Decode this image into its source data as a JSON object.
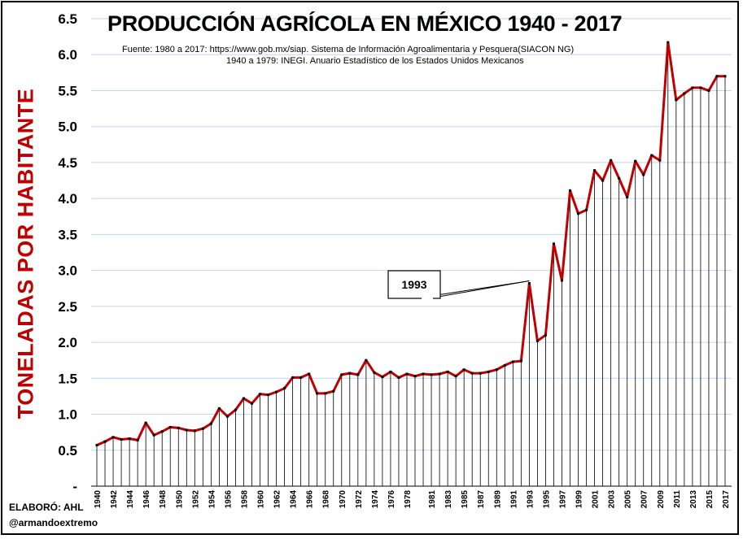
{
  "chart_data": {
    "type": "line",
    "title": "PRODUCCIÓN AGRÍCOLA EN MÉXICO 1940 - 2017",
    "source_line1": "Fuente:  1980 a 2017: https://www.gob.mx/siap.  Sistema de  Información Agroalimentaria y Pesquera(SIACON NG)",
    "source_line2": "1940 a 1979: INEGI. Anuario Estadístico de los Estados Unidos Mexicanos",
    "ylabel": "TONELADAS POR HABITANTE",
    "xlabel": "",
    "ylim": [
      0,
      6.5
    ],
    "ytick_values": [
      0,
      0.5,
      1.0,
      1.5,
      2.0,
      2.5,
      3.0,
      3.5,
      4.0,
      4.5,
      5.0,
      5.5,
      6.0,
      6.5
    ],
    "ytick_labels": [
      "-",
      "0.5",
      "1.0",
      "1.5",
      "2.0",
      "2.5",
      "3.0",
      "3.5",
      "4.0",
      "4.5",
      "5.0",
      "5.5",
      "6.0",
      "6.5"
    ],
    "grid": true,
    "line_color": "#c00000",
    "drop_line_color": "#000000",
    "grid_color": "#bdd7ee",
    "x": [
      1940,
      1941,
      1942,
      1943,
      1944,
      1945,
      1946,
      1947,
      1948,
      1949,
      1950,
      1951,
      1952,
      1953,
      1954,
      1955,
      1956,
      1957,
      1958,
      1959,
      1960,
      1961,
      1962,
      1963,
      1964,
      1965,
      1966,
      1967,
      1968,
      1969,
      1970,
      1971,
      1972,
      1973,
      1974,
      1975,
      1976,
      1977,
      1978,
      1979,
      1980,
      1981,
      1982,
      1983,
      1984,
      1985,
      1986,
      1987,
      1988,
      1989,
      1990,
      1991,
      1992,
      1993,
      1994,
      1995,
      1996,
      1997,
      1998,
      1999,
      2000,
      2001,
      2002,
      2003,
      2004,
      2005,
      2006,
      2007,
      2008,
      2009,
      2010,
      2011,
      2012,
      2013,
      2014,
      2015,
      2016,
      2017
    ],
    "x_tick_labels": [
      "1940",
      "1942",
      "1944",
      "1946",
      "1948",
      "1950",
      "1952",
      "1954",
      "1956",
      "1958",
      "1960",
      "1962",
      "1964",
      "1966",
      "1968",
      "1970",
      "1972",
      "1974",
      "1976",
      "1978",
      "1981",
      "1983",
      "1985",
      "1987",
      "1989",
      "1991",
      "1993",
      "1995",
      "1997",
      "1999",
      "2001",
      "2003",
      "2005",
      "2007",
      "2009",
      "2011",
      "2013",
      "2015",
      "2017"
    ],
    "series": [
      {
        "values": [
          0.57,
          0.62,
          0.68,
          0.65,
          0.66,
          0.64,
          0.88,
          0.71,
          0.76,
          0.82,
          0.81,
          0.78,
          0.77,
          0.8,
          0.87,
          1.08,
          0.97,
          1.06,
          1.22,
          1.15,
          1.28,
          1.27,
          1.31,
          1.36,
          1.51,
          1.51,
          1.56,
          1.29,
          1.29,
          1.32,
          1.55,
          1.57,
          1.55,
          1.75,
          1.58,
          1.52,
          1.59,
          1.51,
          1.56,
          1.53,
          1.56,
          1.55,
          1.56,
          1.59,
          1.53,
          1.62,
          1.57,
          1.57,
          1.59,
          1.62,
          1.68,
          1.73,
          1.74,
          2.82,
          2.02,
          2.1,
          3.37,
          2.86,
          4.11,
          3.79,
          3.84,
          4.39,
          4.25,
          4.53,
          4.28,
          4.02,
          4.52,
          4.33,
          4.6,
          4.53,
          6.17,
          5.37,
          5.46,
          5.54,
          5.54,
          5.5,
          5.7,
          5.7
        ]
      }
    ],
    "annotation": {
      "label": "1993",
      "year": 1993
    }
  },
  "credit": {
    "line1": "ELABORÓ: AHL",
    "line2": "@armandoextremo"
  }
}
